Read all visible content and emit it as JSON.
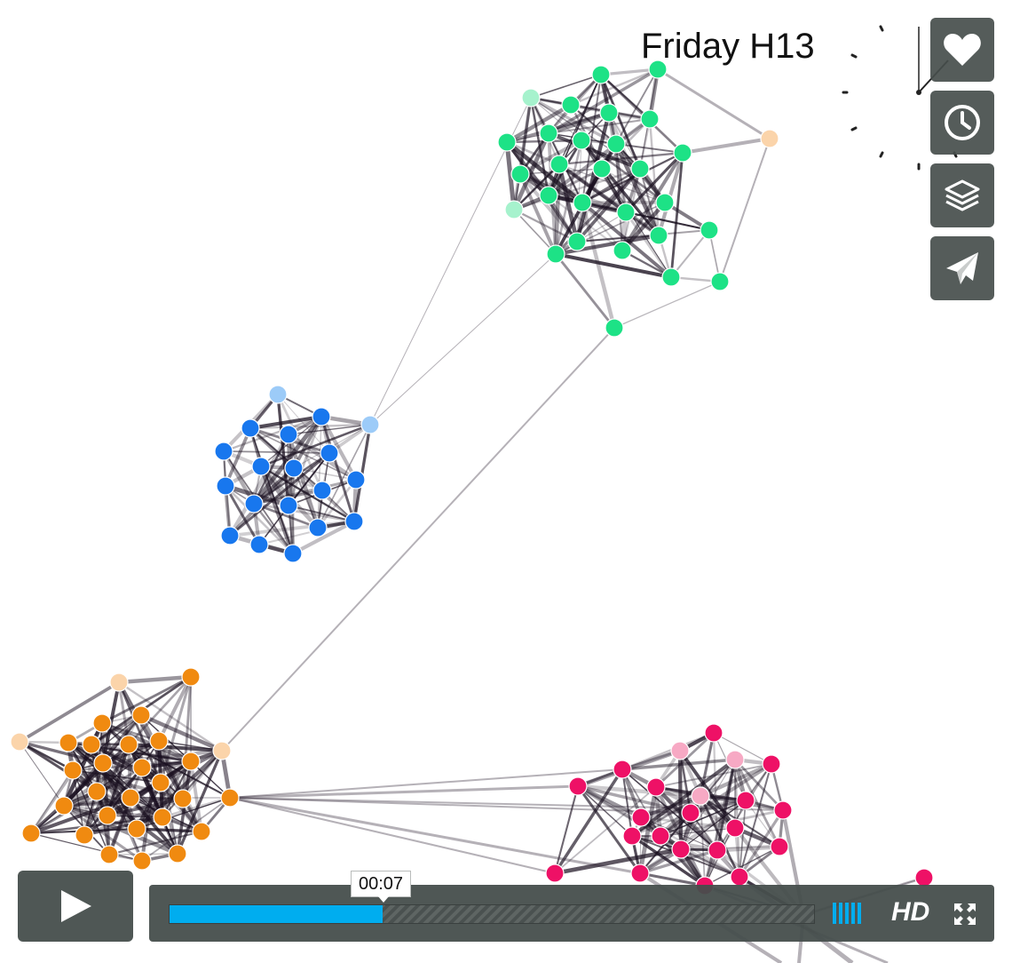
{
  "frame": {
    "title": "Friday H13"
  },
  "side_buttons": [
    {
      "name": "like",
      "icon": "heart-icon"
    },
    {
      "name": "watch-later",
      "icon": "clock-icon"
    },
    {
      "name": "collections",
      "icon": "layers-icon"
    },
    {
      "name": "share",
      "icon": "paper-plane-icon"
    }
  ],
  "player": {
    "time_tooltip": "00:07",
    "progress_fraction": 0.33,
    "hd_label": "HD",
    "play_icon": "play-icon",
    "volume_icon": "volume-bars-icon",
    "fullscreen_icon": "fullscreen-icon"
  },
  "colors": {
    "accent": "#00adef",
    "control_bg": "#464e4c",
    "green": "#1de286",
    "blue": "#1877ee",
    "orange": "#f08a10",
    "pink": "#ee1166"
  }
}
